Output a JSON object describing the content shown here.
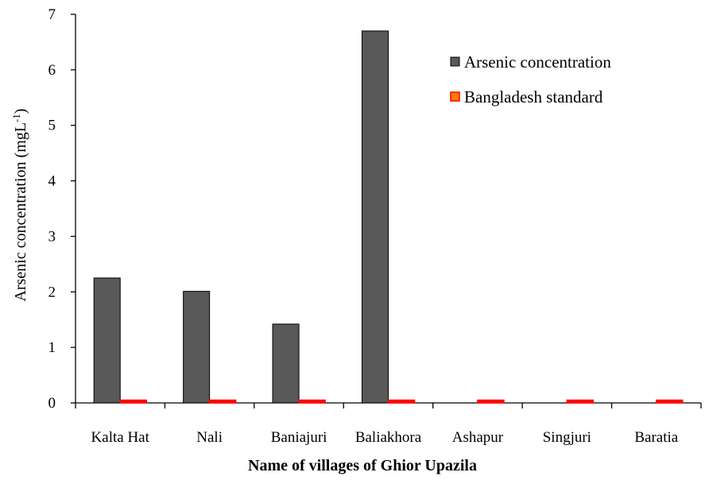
{
  "chart_data": {
    "type": "bar",
    "title": "",
    "xlabel": "Name of villages of Ghior Upazila",
    "ylabel": "Arsenic concentration (mgL",
    "ylabel_superscript": "-1",
    "ylabel_close": ")",
    "categories": [
      "Kalta Hat",
      "Nali",
      "Baniajuri",
      "Baliakhora",
      "Ashapur",
      "Singjuri",
      "Baratia"
    ],
    "series": [
      {
        "name": "Arsenic concentration",
        "color": "#595959",
        "values": [
          2.25,
          2.01,
          1.42,
          6.7,
          0,
          0,
          0
        ]
      },
      {
        "name": "Bangladesh standard",
        "color": "#ff0000",
        "values": [
          0.05,
          0.05,
          0.05,
          0.05,
          0.05,
          0.05,
          0.05
        ]
      }
    ],
    "legend_fill": {
      "Bangladesh standard": "#ff7f00"
    },
    "yticks": [
      0,
      1,
      2,
      3,
      4,
      5,
      6,
      7
    ],
    "ylim": [
      0,
      7
    ],
    "grid": false,
    "legend_position": "top-right"
  }
}
